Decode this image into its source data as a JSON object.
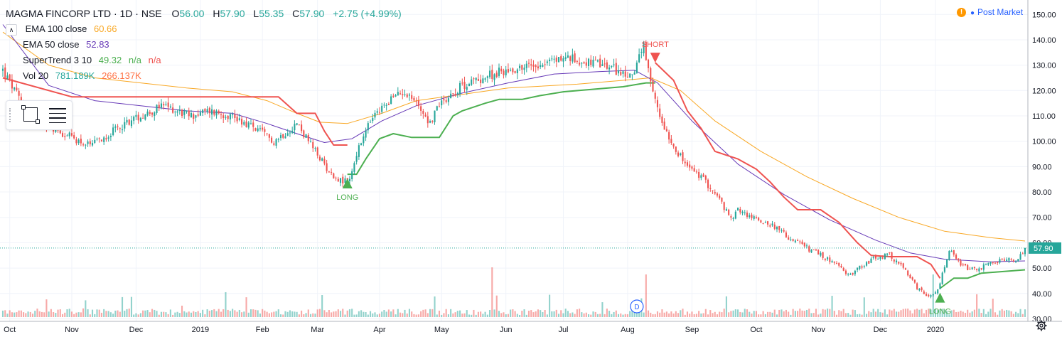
{
  "header": {
    "symbol": "MAGMA FINCORP LTD · 1D · NSE",
    "ohlc": [
      {
        "k": "O",
        "v": "56.00"
      },
      {
        "k": "H",
        "v": "57.90"
      },
      {
        "k": "L",
        "v": "55.35"
      },
      {
        "k": "C",
        "v": "57.90"
      }
    ],
    "change": "+2.75 (+4.99%)"
  },
  "indicators": [
    {
      "name": "EMA 100 close",
      "values": [
        "60.66"
      ],
      "colors": [
        "#f9a825"
      ]
    },
    {
      "name": "EMA 50 close",
      "values": [
        "52.83"
      ],
      "colors": [
        "#673ab7"
      ]
    },
    {
      "name": "SuperTrend 3 10",
      "values": [
        "49.32",
        "n/a",
        "n/a"
      ],
      "colors": [
        "#4caf50",
        "#4caf50",
        "#ef5350"
      ]
    },
    {
      "name": "Vol 20",
      "values": [
        "781.189K",
        "266.137K"
      ],
      "colors": [
        "#26a69a",
        "#ff7043"
      ]
    }
  ],
  "status": {
    "label": "Post Market",
    "icon": "exclamation-icon"
  },
  "price_label": "57.90",
  "annotations": [
    {
      "text": "SHORT",
      "color": "#ef5350"
    },
    {
      "text": "LONG",
      "color": "#4caf50"
    },
    {
      "text": "LONG",
      "color": "#4caf50"
    }
  ],
  "event_marker": "D",
  "colors": {
    "up": "#26a69a",
    "down": "#ef5350",
    "ema100": "#f9a825",
    "ema50": "#673ab7",
    "st_up": "#4caf50",
    "st_down": "#ef5350"
  },
  "chart_data": {
    "type": "candlestick",
    "x_ticks": [
      "Oct",
      "Nov",
      "Dec",
      "2019",
      "Feb",
      "Mar",
      "Apr",
      "May",
      "Jun",
      "Jul",
      "Aug",
      "Sep",
      "Oct",
      "Nov",
      "Dec",
      "2020"
    ],
    "y_ticks": [
      "30.00",
      "40.00",
      "50.00",
      "60.00",
      "70.00",
      "80.00",
      "90.00",
      "100.00",
      "110.00",
      "120.00",
      "130.00",
      "140.00",
      "150.00"
    ],
    "ylim": [
      29,
      154
    ],
    "last_price": 57.9,
    "close_path": [
      [
        0,
        128
      ],
      [
        10,
        112
      ],
      [
        22,
        105
      ],
      [
        38,
        98
      ],
      [
        55,
        108
      ],
      [
        70,
        114
      ],
      [
        82,
        110
      ],
      [
        90,
        112
      ],
      [
        100,
        110
      ],
      [
        110,
        105
      ],
      [
        118,
        100
      ],
      [
        128,
        107
      ],
      [
        136,
        96
      ],
      [
        143,
        87
      ],
      [
        148,
        84
      ],
      [
        151,
        85
      ],
      [
        154,
        95
      ],
      [
        160,
        108
      ],
      [
        168,
        116
      ],
      [
        175,
        120
      ],
      [
        182,
        113
      ],
      [
        186,
        107
      ],
      [
        190,
        115
      ],
      [
        200,
        122
      ],
      [
        215,
        127
      ],
      [
        230,
        130
      ],
      [
        245,
        133
      ],
      [
        255,
        131
      ],
      [
        265,
        129
      ],
      [
        273,
        125
      ],
      [
        279,
        137
      ],
      [
        282,
        122
      ],
      [
        286,
        110
      ],
      [
        291,
        100
      ],
      [
        297,
        91
      ],
      [
        305,
        85
      ],
      [
        312,
        77
      ],
      [
        317,
        69
      ],
      [
        320,
        73
      ],
      [
        326,
        70
      ],
      [
        335,
        67
      ],
      [
        342,
        62
      ],
      [
        350,
        58
      ],
      [
        356,
        55
      ],
      [
        362,
        52
      ],
      [
        368,
        47
      ],
      [
        374,
        51
      ],
      [
        380,
        54
      ],
      [
        386,
        55
      ],
      [
        392,
        50
      ],
      [
        398,
        42
      ],
      [
        403,
        38
      ],
      [
        407,
        41
      ],
      [
        412,
        57
      ],
      [
        417,
        51
      ],
      [
        423,
        49
      ],
      [
        430,
        52
      ],
      [
        436,
        53
      ],
      [
        441,
        53
      ],
      [
        445,
        57.9
      ]
    ],
    "ema100_path": [
      [
        0,
        143
      ],
      [
        20,
        130
      ],
      [
        40,
        125
      ],
      [
        60,
        123
      ],
      [
        80,
        121
      ],
      [
        100,
        119.5
      ],
      [
        115,
        116
      ],
      [
        128,
        111
      ],
      [
        138,
        107.5
      ],
      [
        150,
        107
      ],
      [
        165,
        111
      ],
      [
        180,
        116
      ],
      [
        200,
        118.5
      ],
      [
        220,
        121
      ],
      [
        250,
        122.5
      ],
      [
        270,
        124
      ],
      [
        282,
        125
      ],
      [
        295,
        120
      ],
      [
        310,
        108
      ],
      [
        330,
        96
      ],
      [
        350,
        86
      ],
      [
        370,
        77.5
      ],
      [
        390,
        70
      ],
      [
        410,
        64.5
      ],
      [
        430,
        62
      ],
      [
        445,
        60.66
      ]
    ],
    "ema50_path": [
      [
        0,
        146
      ],
      [
        20,
        122
      ],
      [
        40,
        116
      ],
      [
        60,
        114
      ],
      [
        80,
        112
      ],
      [
        100,
        111
      ],
      [
        115,
        107
      ],
      [
        128,
        103
      ],
      [
        140,
        99.5
      ],
      [
        152,
        101
      ],
      [
        165,
        108
      ],
      [
        180,
        114
      ],
      [
        200,
        119
      ],
      [
        220,
        123
      ],
      [
        240,
        126.5
      ],
      [
        260,
        127.5
      ],
      [
        275,
        128
      ],
      [
        285,
        123
      ],
      [
        300,
        108
      ],
      [
        320,
        91
      ],
      [
        340,
        79
      ],
      [
        360,
        69
      ],
      [
        380,
        61
      ],
      [
        395,
        56
      ],
      [
        410,
        53.5
      ],
      [
        430,
        52.5
      ],
      [
        445,
        52.83
      ]
    ],
    "supertrend_segments": [
      {
        "trend": "down",
        "points": [
          [
            0,
            125
          ],
          [
            30,
            117.5
          ],
          [
            120,
            117.5
          ],
          [
            128,
            111
          ],
          [
            136,
            111
          ],
          [
            140,
            104
          ],
          [
            144,
            98.5
          ],
          [
            150,
            98.5
          ]
        ]
      },
      {
        "trend": "up",
        "points": [
          [
            150,
            87
          ],
          [
            154,
            87
          ],
          [
            158,
            93
          ],
          [
            164,
            101
          ],
          [
            170,
            103
          ],
          [
            178,
            101.5
          ],
          [
            190,
            101.5
          ],
          [
            196,
            110
          ],
          [
            200,
            112
          ],
          [
            210,
            115
          ],
          [
            216,
            116.5
          ],
          [
            226,
            116.5
          ],
          [
            234,
            118
          ],
          [
            244,
            119.5
          ],
          [
            270,
            121.5
          ],
          [
            280,
            123
          ],
          [
            284,
            123
          ]
        ]
      },
      {
        "trend": "down",
        "points": [
          [
            284,
            131
          ],
          [
            292,
            124
          ],
          [
            298,
            112
          ],
          [
            304,
            105
          ],
          [
            310,
            96
          ],
          [
            320,
            93
          ],
          [
            328,
            89
          ],
          [
            334,
            84
          ],
          [
            340,
            78
          ],
          [
            346,
            73
          ],
          [
            356,
            73
          ],
          [
            364,
            68
          ],
          [
            372,
            60
          ],
          [
            378,
            55
          ],
          [
            386,
            54.5
          ],
          [
            398,
            54.5
          ],
          [
            404,
            51.5
          ],
          [
            408,
            46
          ]
        ]
      },
      {
        "trend": "up",
        "points": [
          [
            408,
            42
          ],
          [
            411,
            44
          ],
          [
            414,
            46
          ],
          [
            420,
            46
          ],
          [
            426,
            48
          ],
          [
            445,
            49.32
          ]
        ]
      }
    ],
    "signals": [
      {
        "type": "short",
        "x": 284
      },
      {
        "type": "long",
        "x": 150
      },
      {
        "type": "long",
        "x": 408
      }
    ]
  }
}
